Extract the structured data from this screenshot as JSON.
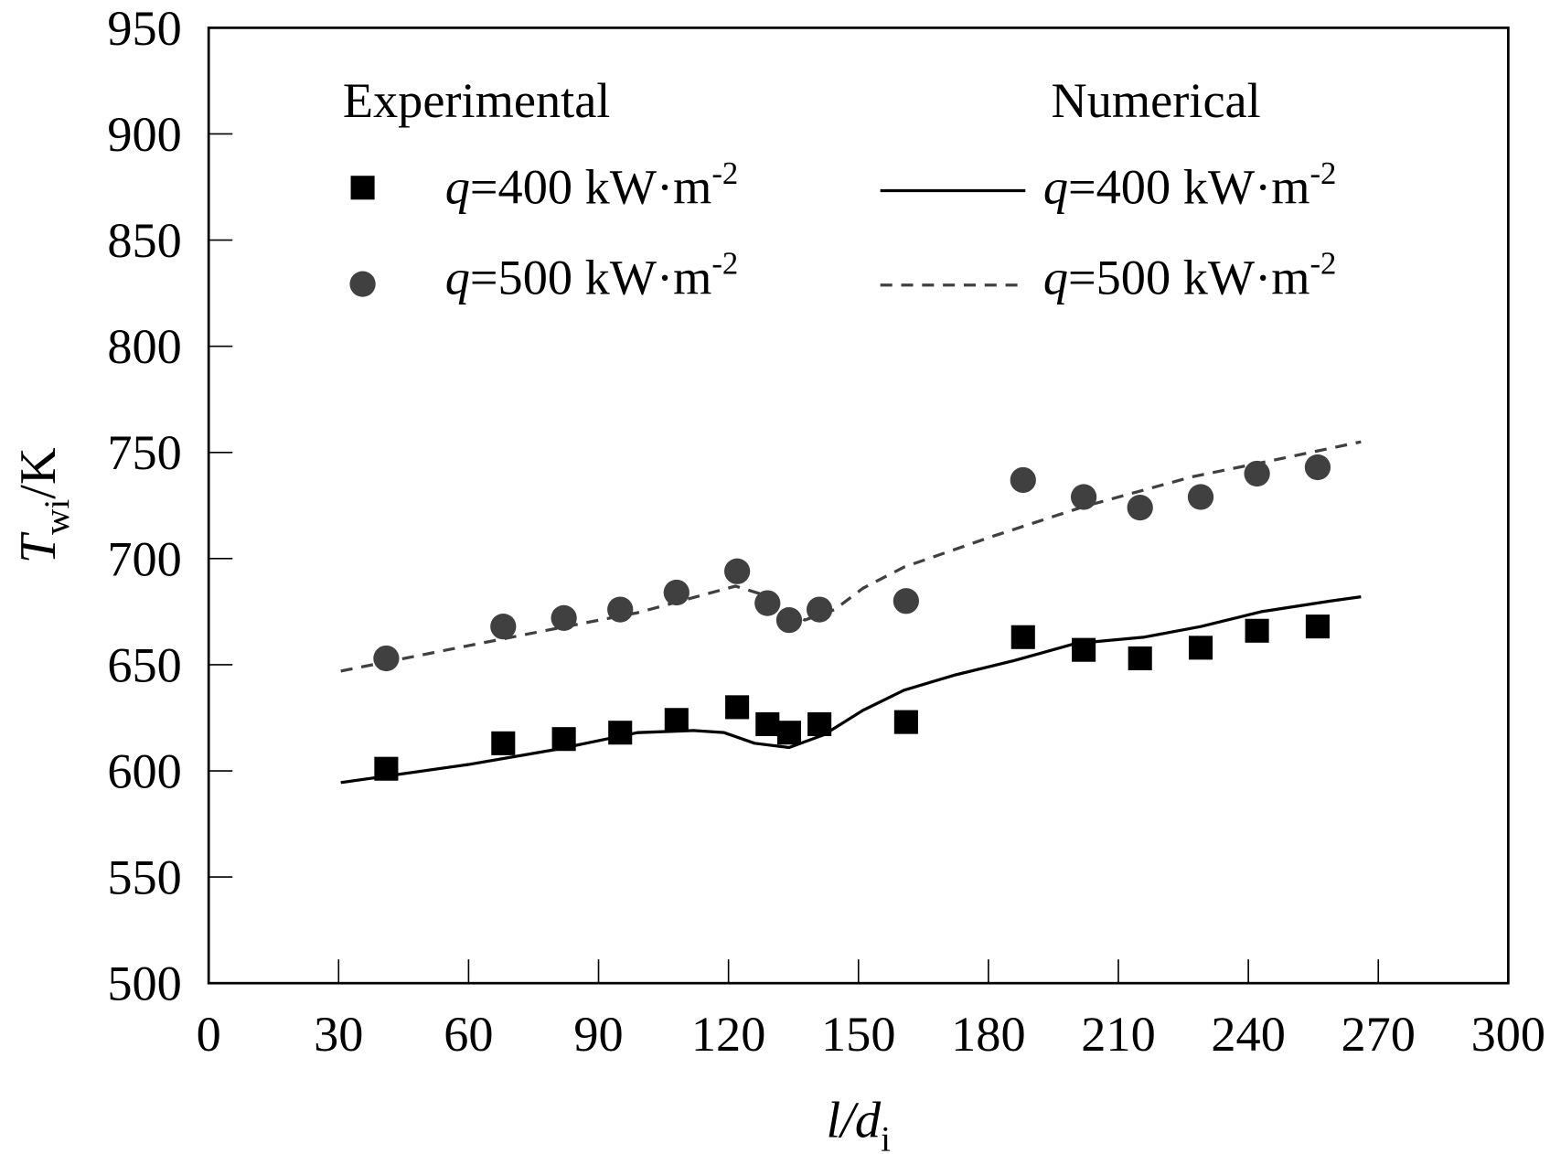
{
  "chart_data": {
    "type": "scatter+line",
    "xlabel": {
      "main": "l/d",
      "sub": "i"
    },
    "ylabel": {
      "main": "T",
      "sub": "wi",
      "unit": "/K"
    },
    "xlim": [
      0,
      300
    ],
    "ylim": [
      500,
      950
    ],
    "xticks": [
      0,
      30,
      60,
      90,
      120,
      150,
      180,
      210,
      240,
      270,
      300
    ],
    "yticks": [
      500,
      550,
      600,
      650,
      700,
      750,
      800,
      850,
      900,
      950
    ],
    "grid": false,
    "legend": {
      "placement": "top",
      "experimental_title": "Experimental",
      "numerical_title": "Numerical"
    },
    "series": [
      {
        "name": "q=400 kW·m-2",
        "group": "Experimental",
        "kind": "scatter",
        "marker": "square",
        "color": "#000000",
        "label_q": "q",
        "label_rest": "=400 kW·m",
        "label_sup": "-2",
        "x": [
          41,
          68,
          82,
          95,
          108,
          122,
          129,
          134,
          141,
          161,
          188,
          202,
          215,
          229,
          242,
          256
        ],
        "y": [
          601,
          613,
          615,
          618,
          624,
          630,
          622,
          618,
          622,
          623,
          663,
          657,
          653,
          658,
          666,
          668
        ]
      },
      {
        "name": "q=500 kW·m-2",
        "group": "Experimental",
        "kind": "scatter",
        "marker": "circle",
        "color": "#404040",
        "label_q": "q",
        "label_rest": "=500 kW·m",
        "label_sup": "-2",
        "x": [
          41,
          68,
          82,
          95,
          108,
          122,
          129,
          134,
          141,
          161,
          188,
          202,
          215,
          229,
          242,
          256
        ],
        "y": [
          653,
          668,
          672,
          676,
          684,
          694,
          679,
          671,
          676,
          680,
          737,
          729,
          724,
          729,
          740,
          743
        ]
      },
      {
        "name": "q=400 kW·m-2",
        "group": "Numerical",
        "kind": "line",
        "style": "solid",
        "color": "#000000",
        "label_q": "q",
        "label_rest": "=400 kW·m",
        "label_sup": "-2",
        "x": [
          30.5,
          60,
          80,
          99,
          112,
          119,
          126,
          134,
          142,
          151,
          160.5,
          172,
          186,
          200,
          216,
          229,
          243,
          259,
          266
        ],
        "y": [
          594.5,
          603,
          610,
          618,
          619,
          618,
          613,
          611,
          617,
          628.5,
          638,
          645,
          652,
          660,
          663,
          668,
          675,
          680,
          682
        ]
      },
      {
        "name": "q=500 kW·m-2",
        "group": "Numerical",
        "kind": "line",
        "style": "dashed",
        "color": "#404040",
        "label_q": "q",
        "label_rest": "=500 kW·m",
        "label_sup": "-2",
        "x": [
          30.5,
          60,
          80,
          99,
          121.6,
          128,
          137.6,
          144.5,
          151,
          160.5,
          181,
          202,
          227,
          245,
          266
        ],
        "y": [
          647,
          659,
          667,
          674.5,
          687,
          683,
          671,
          676,
          686,
          696,
          710.5,
          724.5,
          738.5,
          746,
          755
        ]
      }
    ]
  }
}
